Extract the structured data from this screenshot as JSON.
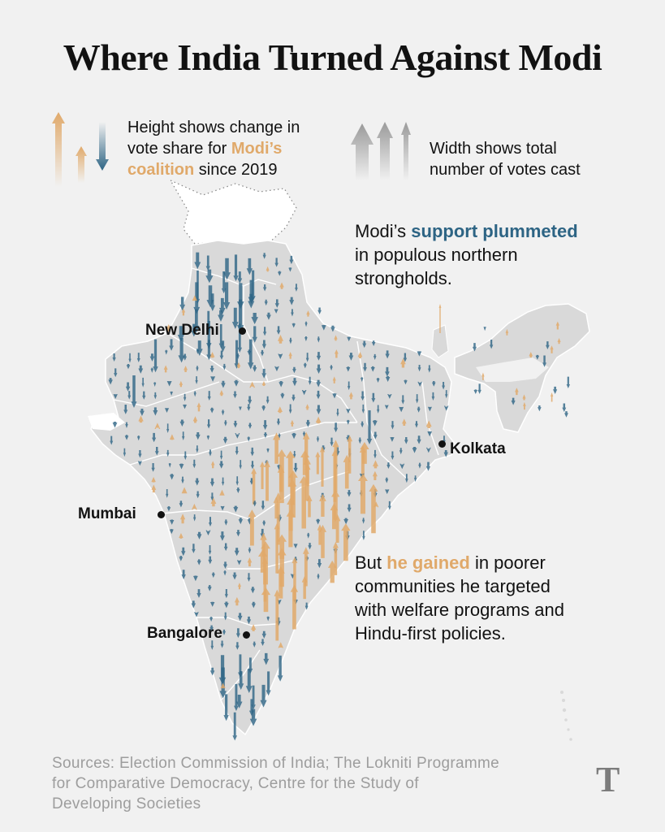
{
  "title": "Where India Turned Against Modi",
  "legend": {
    "height_line1": "Height shows change in",
    "height_line2_pre": "vote share for ",
    "height_line2_em": "Modi’s",
    "height_line3_em": "coalition",
    "height_line3_post": " since 2019",
    "width_line1": "Width shows total",
    "width_line2": "number of votes cast"
  },
  "annotations": {
    "north_pre": "Modi’s ",
    "north_em": "support plummeted",
    "north_l2": "in populous northern",
    "north_l3": "strongholds.",
    "south_pre": "But ",
    "south_em": "he gained",
    "south_post": " in poorer",
    "south_l2": "communities he targeted",
    "south_l3": "with welfare programs and",
    "south_l4": "Hindu-first policies."
  },
  "cities": {
    "new_delhi": "New Delhi",
    "kolkata": "Kolkata",
    "mumbai": "Mumbai",
    "bangalore": "Bangalore"
  },
  "sources": {
    "l1": "Sources: Election Commission of India; The Lokniti Programme",
    "l2": "for Comparative Democracy, Centre for the Study of",
    "l3": "Developing Societies"
  },
  "logo_mark": "T",
  "colors": {
    "gain": "#e0a96a",
    "loss": "#2d6484",
    "land": "#d9d9d9",
    "background": "#f1f1f1"
  }
}
